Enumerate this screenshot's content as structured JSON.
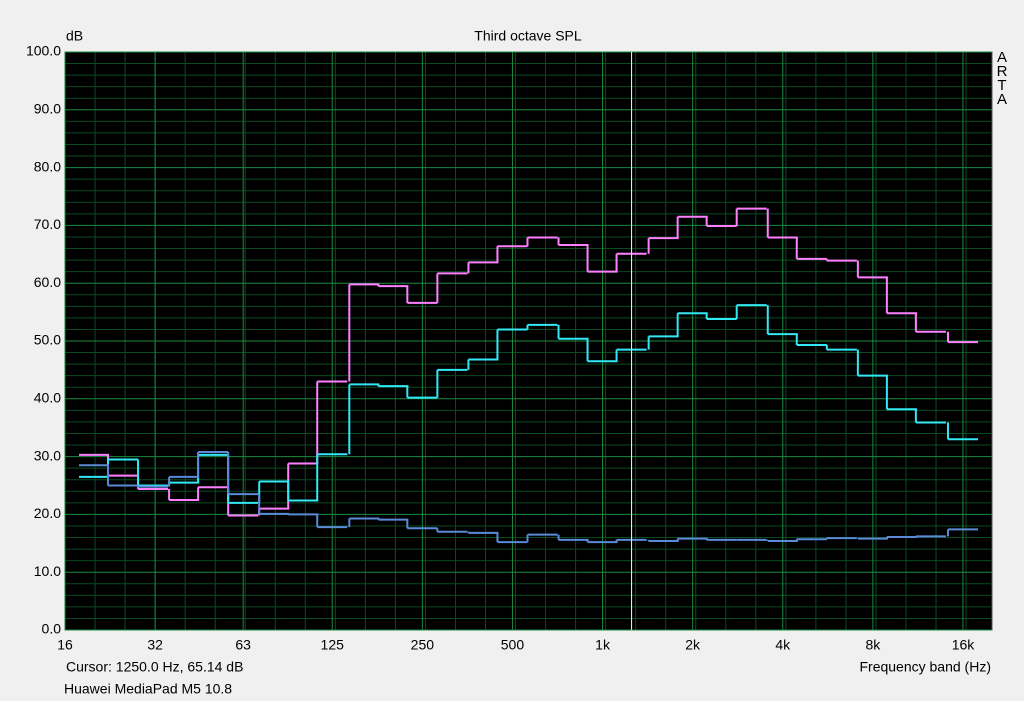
{
  "chart_data": {
    "type": "step",
    "title": "Third octave SPL",
    "y_label": "dB",
    "x_label": "Frequency band (Hz)",
    "watermark": "ARTA",
    "footer": "Huawei MediaPad M5 10.8",
    "cursor": {
      "value": 1250,
      "label": "Cursor:  1250.0 Hz, 65.14 dB"
    },
    "log_x": true,
    "grid": true,
    "x": [
      20,
      25,
      31.5,
      40,
      50,
      63,
      80,
      100,
      125,
      160,
      200,
      250,
      315,
      400,
      500,
      630,
      800,
      1000,
      1250,
      1600,
      2000,
      2500,
      3150,
      4000,
      5000,
      6300,
      8000,
      10000,
      12500,
      16000
    ],
    "series": [
      {
        "color": "#ff80ff",
        "values": [
          30.3,
          26.7,
          24.4,
          22.5,
          24.7,
          19.8,
          21.0,
          28.8,
          43.0,
          59.8,
          59.5,
          56.6,
          61.7,
          63.6,
          66.4,
          67.9,
          66.6,
          62.0,
          65.1,
          67.8,
          71.5,
          69.9,
          72.9,
          67.9,
          64.2,
          63.9,
          61.0,
          54.8,
          51.6,
          49.8
        ]
      },
      {
        "color": "#33e8f5",
        "values": [
          26.5,
          29.5,
          25.0,
          25.5,
          30.3,
          22.0,
          25.7,
          22.4,
          30.4,
          42.5,
          42.2,
          40.2,
          45.0,
          46.8,
          52.0,
          52.8,
          50.4,
          46.5,
          48.5,
          50.8,
          54.8,
          53.8,
          56.2,
          51.2,
          49.3,
          48.5,
          44.0,
          38.2,
          35.9,
          33.0
        ]
      },
      {
        "color": "#5a8ad8",
        "values": [
          28.5,
          25.0,
          24.8,
          26.5,
          30.8,
          23.5,
          20.1,
          20.0,
          17.8,
          19.3,
          19.1,
          17.6,
          17.0,
          16.8,
          15.2,
          16.5,
          15.6,
          15.2,
          15.6,
          15.4,
          15.8,
          15.6,
          15.6,
          15.4,
          15.7,
          15.9,
          15.8,
          16.1,
          16.2,
          17.4
        ]
      }
    ],
    "xlim": [
      16,
      20000
    ],
    "xticks": [
      16,
      32,
      63,
      125,
      250,
      500,
      {
        "value": 1000,
        "label": "1k"
      },
      {
        "value": 2000,
        "label": "2k"
      },
      {
        "value": 4000,
        "label": "4k"
      },
      {
        "value": 8000,
        "label": "8k"
      },
      {
        "value": 16000,
        "label": "16k"
      }
    ],
    "ylim": [
      0,
      100
    ],
    "yticks": [
      {
        "value": 0,
        "label": "0.0"
      },
      {
        "value": 10,
        "label": "10.0"
      },
      {
        "value": 20,
        "label": "20.0"
      },
      {
        "value": 30,
        "label": "30.0"
      },
      {
        "value": 40,
        "label": "40.0"
      },
      {
        "value": 50,
        "label": "50.0"
      },
      {
        "value": 60,
        "label": "60.0"
      },
      {
        "value": 70,
        "label": "70.0"
      },
      {
        "value": 80,
        "label": "80.0"
      },
      {
        "value": 90,
        "label": "90.0"
      },
      {
        "value": 100,
        "label": "100.0"
      }
    ]
  }
}
